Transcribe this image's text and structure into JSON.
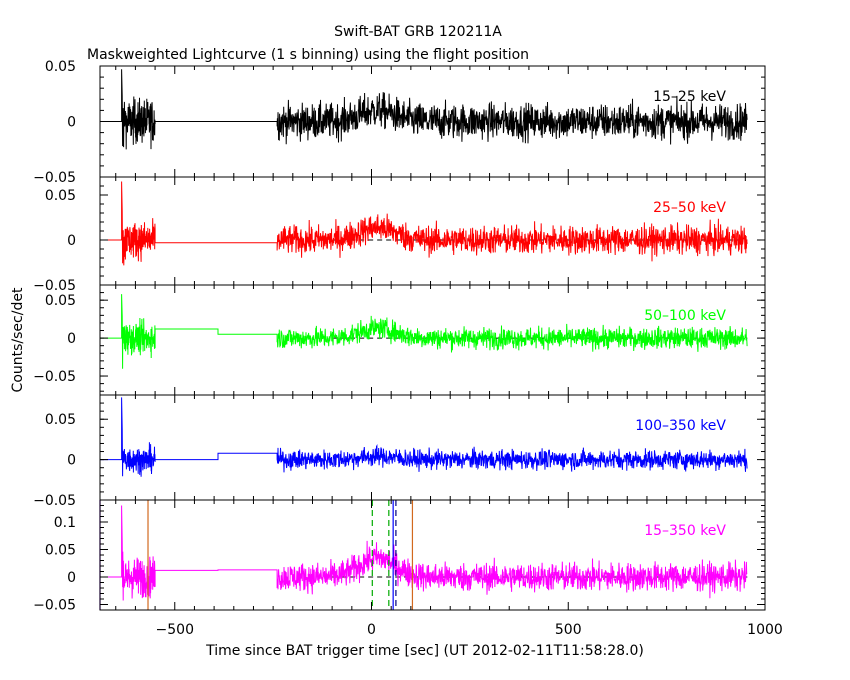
{
  "title": "Swift-BAT GRB 120211A",
  "subtitle": "Maskweighted Lightcurve (1 s binning) using the flight position",
  "chart_data": {
    "type": "line",
    "xlabel": "Time since BAT trigger time [sec] (UT 2012-02-11T11:58:28.0)",
    "ylabel": "Counts/sec/det",
    "xlim": [
      -690,
      1000
    ],
    "x_ticks": [
      -500,
      0,
      500,
      1000
    ],
    "x_tick_labels": [
      "−500",
      "0",
      "500",
      "1000"
    ],
    "grid": false,
    "panels": [
      {
        "band": "15–25 keV",
        "color": "#000000",
        "ylim": [
          -0.05,
          0.05
        ],
        "yticks": [
          -0.05,
          0,
          0.05
        ],
        "ytick_labels": [
          "−0.05",
          "0",
          "0.05"
        ],
        "gap_level": 0.0,
        "gap_level2": 0.0,
        "noise_before": 0.01,
        "noise_after": 0.008,
        "spike_peak": 0.047,
        "spike_min": -0.045,
        "burst_amp": 0.01,
        "baseline_dashed": false,
        "vlines": []
      },
      {
        "band": "25–50 keV",
        "color": "#ff0000",
        "ylim": [
          -0.05,
          0.07
        ],
        "yticks": [
          -0.05,
          0,
          0.05
        ],
        "ytick_labels": [
          "−0.05",
          "0",
          "0.05"
        ],
        "gap_level": -0.003,
        "gap_level2": -0.003,
        "noise_before": 0.01,
        "noise_after": 0.008,
        "spike_peak": 0.065,
        "spike_min": -0.055,
        "burst_amp": 0.014,
        "baseline_dashed": true,
        "vlines": []
      },
      {
        "band": "50–100 keV",
        "color": "#00ff00",
        "ylim": [
          -0.075,
          0.07
        ],
        "yticks": [
          -0.05,
          0,
          0.05
        ],
        "ytick_labels": [
          "−0.05",
          "0",
          "0.05"
        ],
        "gap_level": 0.012,
        "gap_level2": 0.005,
        "noise_before": 0.01,
        "noise_after": 0.007,
        "spike_peak": 0.058,
        "spike_min": -0.075,
        "burst_amp": 0.013,
        "baseline_dashed": true,
        "vlines": []
      },
      {
        "band": "100–350 keV",
        "color": "#0000ff",
        "ylim": [
          -0.05,
          0.08
        ],
        "yticks": [
          -0.05,
          0,
          0.05
        ],
        "ytick_labels": [
          "−0.05",
          "0",
          "0.05"
        ],
        "gap_level": 0.0,
        "gap_level2": 0.008,
        "noise_before": 0.008,
        "noise_after": 0.006,
        "spike_peak": 0.077,
        "spike_min": -0.05,
        "burst_amp": 0.004,
        "baseline_dashed": false,
        "vlines": []
      },
      {
        "band": "15–350 keV",
        "color": "#ff00ff",
        "ylim": [
          -0.06,
          0.14
        ],
        "yticks": [
          -0.05,
          0,
          0.05,
          0.1
        ],
        "ytick_labels": [
          "−0.05",
          "0",
          "0.05",
          "0.1"
        ],
        "gap_level": 0.012,
        "gap_level2": 0.013,
        "noise_before": 0.018,
        "noise_after": 0.013,
        "spike_peak": 0.13,
        "spike_min": -0.06,
        "burst_amp": 0.035,
        "baseline_dashed": true,
        "vlines": [
          {
            "x": -690,
            "color": "#8000ff",
            "dash": false
          },
          {
            "x": -568,
            "color": "#d2691e",
            "dash": false
          },
          {
            "x": 2,
            "color": "#00aa00",
            "dash": true
          },
          {
            "x": 44,
            "color": "#00aa00",
            "dash": true
          },
          {
            "x": 55,
            "color": "#0000ff",
            "dash": false
          },
          {
            "x": 62,
            "color": "#000080",
            "dash": true
          },
          {
            "x": 104,
            "color": "#d2691e",
            "dash": false
          }
        ]
      }
    ],
    "segments": {
      "first": [
        -635,
        -550
      ],
      "gap": [
        -550,
        -240
      ],
      "gap_step_at": -390,
      "second": [
        -240,
        955
      ],
      "lead_line": [
        -690,
        -635
      ],
      "burst_center": 15
    }
  }
}
